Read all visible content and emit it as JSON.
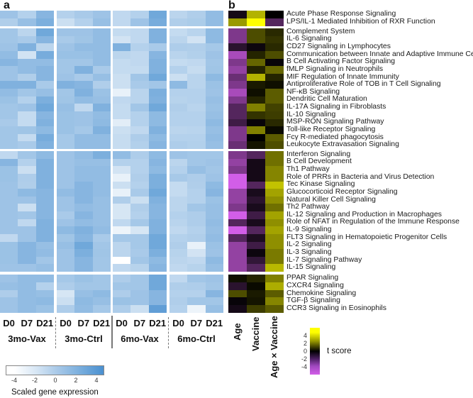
{
  "panel_a": {
    "letter": "a"
  },
  "panel_b": {
    "letter": "b"
  },
  "chart_data": [
    {
      "type": "heatmap",
      "title": "",
      "panel": "a",
      "columns": [
        "D0",
        "D7",
        "D21",
        "D0",
        "D7",
        "D21",
        "D0",
        "D7",
        "D21",
        "D0",
        "D7",
        "D21"
      ],
      "column_groups": [
        "3mo-Vax",
        "3mo-Ctrl",
        "6mo-Vax",
        "6mo-Ctrl"
      ],
      "row_groups": [
        2,
        16,
        16,
        5
      ],
      "colorbar": {
        "label": "Scaled gene expression",
        "ticks": [
          "-4",
          "-2",
          "0",
          "2",
          "4"
        ],
        "range": [
          -4,
          4
        ],
        "low_color": "#ffffff",
        "high_color": "#4a90d0"
      },
      "values": [
        [
          0.5,
          -0.5,
          1.5,
          -0.5,
          0,
          0.5,
          -1,
          -0.5,
          2.5,
          -0.8,
          -0.3,
          1
        ],
        [
          -0.3,
          0.8,
          2,
          -1.5,
          -0.5,
          0.8,
          -1,
          0.5,
          2.2,
          -0.3,
          -0.1,
          1
        ],
        [
          0.3,
          -0.8,
          2.5,
          0.5,
          0.5,
          1,
          -1.2,
          -1,
          1.8,
          -1.2,
          -0.7,
          1.2
        ],
        [
          0.3,
          0,
          1.5,
          0,
          0.4,
          1,
          -1.8,
          -1,
          1.8,
          -0.8,
          -1.8,
          1.2
        ],
        [
          0.5,
          1.8,
          -0.8,
          0.5,
          1,
          1,
          1.8,
          -0.5,
          0,
          -0.2,
          -0.3,
          0.2
        ],
        [
          1,
          -1.8,
          2.2,
          0.7,
          0.7,
          1,
          -0.8,
          -1,
          1.5,
          -0.7,
          -0.4,
          0.5
        ],
        [
          1.5,
          1,
          1,
          0.3,
          0.3,
          1,
          -1.2,
          -1,
          1.8,
          -1.2,
          -1,
          0.3
        ],
        [
          0.5,
          1,
          1.5,
          0.3,
          1.8,
          0,
          -1.2,
          -1.2,
          1.8,
          -0.5,
          -1.3,
          0.4
        ],
        [
          0.5,
          -0.3,
          1.5,
          0.5,
          0,
          0.8,
          -1.5,
          0.3,
          2.5,
          -1.5,
          -0.7,
          1.2
        ],
        [
          1.8,
          1.8,
          0,
          1.8,
          1.5,
          -0.3,
          -1.5,
          0,
          0.3,
          1.2,
          -0.7,
          0.6
        ],
        [
          1,
          0.3,
          0.8,
          0.3,
          1.8,
          0.6,
          -2.8,
          -0.7,
          2,
          -0.5,
          -0.5,
          0.5
        ],
        [
          0.6,
          -0.5,
          2,
          0.4,
          1,
          0.8,
          -1,
          -0.7,
          1.8,
          -0.6,
          -0.5,
          0.8
        ],
        [
          0.3,
          0.5,
          2.5,
          0.8,
          -1,
          1.8,
          -1.2,
          0.3,
          2.5,
          -0.3,
          -0.7,
          0.6
        ],
        [
          0.3,
          -1.2,
          1.5,
          0.6,
          0.5,
          1,
          -1.2,
          -0.5,
          1.2,
          -0.5,
          -0.5,
          0.8
        ],
        [
          0,
          -1.2,
          1.8,
          0.6,
          0.5,
          1.2,
          -2.5,
          -0.5,
          1.2,
          -0.5,
          -0.5,
          1.2
        ],
        [
          0.3,
          0.4,
          1.2,
          0.6,
          0.2,
          1.8,
          -1.5,
          -1,
          1.8,
          -0.8,
          -0.7,
          0.8
        ],
        [
          0.3,
          -1.2,
          2.2,
          0.2,
          1,
          1,
          -1.3,
          -0.2,
          1.2,
          -0.5,
          -0.5,
          1
        ],
        [
          0.3,
          0,
          1.8,
          0.2,
          1,
          1,
          -1.3,
          -0.4,
          1.5,
          -0.2,
          -0.4,
          0.8
        ],
        [
          -1,
          0.3,
          1.2,
          0.5,
          1,
          2,
          1,
          -0.2,
          1.2,
          0.5,
          0.3,
          0.3
        ],
        [
          1.5,
          -0.5,
          1.8,
          0.5,
          0.8,
          0.8,
          -0.5,
          -0.5,
          1.5,
          -0.8,
          0.3,
          0.5
        ],
        [
          0.6,
          -1.5,
          1.8,
          0.5,
          1,
          1,
          -1.8,
          -0.5,
          1.2,
          -0.5,
          0.8,
          0.3
        ],
        [
          0.6,
          -0.2,
          1.8,
          0.5,
          1,
          1,
          -2.8,
          -0.3,
          2,
          0.1,
          -0.2,
          0.5
        ],
        [
          0.5,
          -0.3,
          1.8,
          0.5,
          1.5,
          1,
          -1.5,
          -0.5,
          2,
          -1.2,
          -0.3,
          1.2
        ],
        [
          0.5,
          1.2,
          1.5,
          1,
          1.5,
          1,
          -2.8,
          0,
          2.5,
          -1.2,
          -0.5,
          1.5
        ],
        [
          0.5,
          0.5,
          1.5,
          0.5,
          1.5,
          0.8,
          -0.3,
          -1.5,
          1.8,
          -0.8,
          -0.5,
          0.6
        ],
        [
          0.5,
          -1.5,
          1.5,
          0.5,
          1,
          0.8,
          -2,
          -0.3,
          1.5,
          -0.8,
          0.3,
          0.8
        ],
        [
          0.5,
          0.3,
          1.5,
          0,
          1.5,
          0.8,
          -2,
          -0.5,
          1.5,
          -0.5,
          -0.2,
          0.8
        ],
        [
          0.5,
          -1,
          1.8,
          0.5,
          1,
          0.8,
          -1,
          0.2,
          1.8,
          -0.7,
          -0.2,
          1
        ],
        [
          0.5,
          0.5,
          1.8,
          1.2,
          1.8,
          1,
          -3,
          -2,
          1.8,
          -1,
          -0.5,
          0.8
        ],
        [
          -1,
          0.5,
          1.8,
          0.4,
          1.5,
          0,
          0.2,
          0.2,
          2.5,
          -0.5,
          -0.3,
          1
        ],
        [
          0.6,
          1.5,
          0.8,
          0.8,
          2.5,
          0.3,
          -0.8,
          0.2,
          2.5,
          -0.3,
          -2.8,
          0.6
        ],
        [
          0.6,
          1.5,
          1,
          0.5,
          2,
          0.4,
          -0.8,
          0,
          2,
          -0.6,
          -1.8,
          0.5
        ],
        [
          0.6,
          1.5,
          0.3,
          0.5,
          1.5,
          0.3,
          -4,
          0.3,
          1.2,
          -0.8,
          -1,
          1.2
        ],
        [
          0.5,
          0.5,
          0.8,
          0.5,
          1.5,
          0.3,
          -1,
          -0.6,
          1.5,
          -1,
          -0.6,
          0.8
        ],
        [
          0.5,
          1,
          1,
          0.2,
          0.6,
          0.3,
          -0.2,
          0.3,
          2.5,
          -1,
          0.3,
          0.5
        ],
        [
          0.8,
          1,
          -0.5,
          -0.2,
          0.3,
          0.3,
          0.3,
          0.3,
          2.5,
          -0.3,
          -0.2,
          0.3
        ],
        [
          -0.2,
          1,
          0.8,
          -2,
          0.8,
          1.2,
          -0.2,
          0.5,
          1.5,
          -0.5,
          -0.5,
          1.5
        ],
        [
          0.5,
          1,
          1.2,
          -1.5,
          1.2,
          0.8,
          0.6,
          0.5,
          1.5,
          -0.3,
          0.3,
          0.3
        ],
        [
          0.5,
          1,
          0.6,
          -0.2,
          1,
          0.2,
          -0.2,
          -1.5,
          3.2,
          -0.5,
          -3,
          0.8
        ]
      ]
    },
    {
      "type": "heatmap",
      "title": "",
      "panel": "b",
      "columns": [
        "Age",
        "Vaccine",
        "Age × Vaccine"
      ],
      "row_groups": [
        2,
        16,
        16,
        5
      ],
      "colorbar": {
        "label": "t score",
        "ticks": [
          "4",
          "2",
          "0",
          "-2",
          "-4"
        ],
        "range": [
          -5,
          5
        ],
        "negative_color": "#d25ee8",
        "zero_color": "#000000",
        "positive_color": "#ffff00"
      },
      "rows": [
        "Acute Phase Response Signaling",
        "LPS/IL-1 Mediated Inhibition of RXR Function",
        "Complement System",
        "IL-6 Signaling",
        "CD27 Signaling in Lymphocytes",
        "Communication between Innate and Adaptive Immune Cells",
        "B Cell Activating Factor Signaling",
        "fMLP Signaling in Neutrophils",
        "MIF Regulation of Innate Immunity",
        "Antiproliferative Role of TOB in T Cell Signaling",
        "NF-κB Signaling",
        "Dendritic Cell Maturation",
        "IL-17A Signaling in Fibroblasts",
        "IL-10 Signaling",
        "MSP-RON Signaling Pathway",
        "Toll-like Receptor Signaling",
        "Fcγ R-mediated phagocytosis",
        "Leukocyte Extravasation Signaling",
        "Interferon Signaling",
        "B Cell Development",
        "Th1 Pathway",
        "Role of PRRs in Bacteria and Virus Detection",
        "Tec Kinase Signaling",
        "Glucocorticoid Receptor Signaling",
        "Natural Killer Cell Signaling",
        "Th2 Pathway",
        "IL-12 Signaling and Production in Macrophages",
        "Role of NFAT in Regulation of the Immune Response",
        "IL-9 Signaling",
        "FLT3 Signaling in Hematopoietic Progenitor Cells",
        "IL-2 Signaling",
        "IL-3 Signaling",
        "IL-7 Signaling Pathway",
        "IL-15 Signaling",
        "PPAR Signaling",
        "CXCR4 Signaling",
        "Chemokine Signaling",
        "TGF-β Signaling",
        "CCR3 Signaling in Eosinophils"
      ],
      "values": [
        [
          -0.5,
          3.5,
          0
        ],
        [
          3,
          5,
          -2
        ],
        [
          -3,
          1.5,
          0.8
        ],
        [
          -3,
          1.5,
          1
        ],
        [
          -1,
          -0.3,
          0.8
        ],
        [
          -4,
          0.7,
          1.5
        ],
        [
          -3,
          2,
          -0.2
        ],
        [
          -3.5,
          0.7,
          2
        ],
        [
          -2.5,
          3.5,
          0.7
        ],
        [
          -3,
          0.5,
          0.3
        ],
        [
          -4,
          0.3,
          1.8
        ],
        [
          -3,
          0.7,
          1.8
        ],
        [
          -2,
          2.5,
          1.3
        ],
        [
          -2,
          1,
          1.2
        ],
        [
          -1.5,
          -0.2,
          0.8
        ],
        [
          -3,
          2.5,
          0.2
        ],
        [
          -3,
          0,
          1.8
        ],
        [
          -2.5,
          0.4,
          1.5
        ],
        [
          -3,
          -2,
          2.2
        ],
        [
          -3.5,
          -0.5,
          2.2
        ],
        [
          -3,
          -0.5,
          2.6
        ],
        [
          -5,
          -0.5,
          2.6
        ],
        [
          -5,
          -2,
          3.8
        ],
        [
          -3.5,
          -0.6,
          3.2
        ],
        [
          -3.5,
          -1,
          2.8
        ],
        [
          -3,
          -0.6,
          2.2
        ],
        [
          -5,
          -1.5,
          3.2
        ],
        [
          -2,
          -0.6,
          2.8
        ],
        [
          -5,
          -2,
          3.2
        ],
        [
          -2,
          -0.7,
          2.8
        ],
        [
          -3.5,
          -1.5,
          2.8
        ],
        [
          -3.5,
          -0.3,
          2.4
        ],
        [
          -3.5,
          -1.2,
          2.4
        ],
        [
          -3.5,
          -2,
          3.6
        ],
        [
          0.3,
          0.7,
          2.5
        ],
        [
          -1,
          0.2,
          3.4
        ],
        [
          1.5,
          0.5,
          1.8
        ],
        [
          -0.2,
          0.4,
          2.6
        ],
        [
          -0.5,
          1.2,
          1.8
        ]
      ]
    }
  ]
}
